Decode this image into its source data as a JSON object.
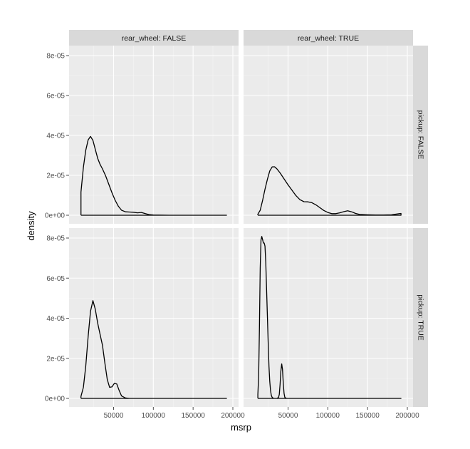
{
  "chart_data": {
    "type": "line",
    "subtype": "density-facet-grid",
    "xlabel": "msrp",
    "ylabel": "density",
    "xlim": [
      0,
      200000
    ],
    "ylim": [
      0,
      8e-05
    ],
    "x_ticks": [
      50000,
      100000,
      150000,
      200000
    ],
    "x_tick_labels": [
      "50000",
      "100000",
      "150000",
      "200000"
    ],
    "y_ticks": [
      0,
      2e-05,
      4e-05,
      6e-05,
      8e-05
    ],
    "y_tick_labels": [
      "0e+00",
      "2e-05",
      "4e-05",
      "6e-05",
      "8e-05"
    ],
    "grid": true,
    "col_strips": [
      "rear_wheel: FALSE",
      "rear_wheel: TRUE"
    ],
    "row_strips": [
      "pickup: FALSE",
      "pickup: TRUE"
    ],
    "panels": [
      {
        "col": 0,
        "row": 0,
        "x": [
          9000,
          12000,
          15000,
          18000,
          21000,
          24000,
          27000,
          30000,
          33000,
          36000,
          40000,
          44000,
          48000,
          52000,
          56000,
          60000,
          65000,
          70000,
          75000,
          80000,
          85000,
          90000,
          95000,
          100000,
          120000,
          140000,
          160000,
          180000,
          192000
        ],
        "y": [
          1.16e-05,
          2.4e-05,
          3.25e-05,
          3.78e-05,
          3.95e-05,
          3.75e-05,
          3.3e-05,
          2.85e-05,
          2.55e-05,
          2.32e-05,
          1.98e-05,
          1.55e-05,
          1.12e-05,
          7.5e-06,
          4.5e-06,
          2.5e-06,
          1.7e-06,
          1.6e-06,
          1.5e-06,
          1.2e-06,
          1.4e-06,
          8e-07,
          3e-07,
          1e-07,
          0,
          0,
          0,
          0,
          0
        ]
      },
      {
        "col": 1,
        "row": 0,
        "x": [
          12000,
          15000,
          18000,
          21000,
          24000,
          27000,
          30000,
          33000,
          36000,
          40000,
          45000,
          50000,
          55000,
          60000,
          65000,
          70000,
          75000,
          80000,
          85000,
          90000,
          95000,
          100000,
          105000,
          110000,
          115000,
          120000,
          125000,
          130000,
          135000,
          140000,
          150000,
          160000,
          170000,
          180000,
          190000,
          192000
        ],
        "y": [
          5e-07,
          2.5e-06,
          7.5e-06,
          1.3e-05,
          1.8e-05,
          2.22e-05,
          2.42e-05,
          2.43e-05,
          2.32e-05,
          2.12e-05,
          1.82e-05,
          1.52e-05,
          1.25e-05,
          9.8e-06,
          7.8e-06,
          6.8e-06,
          6.7e-06,
          6.3e-06,
          5.2e-06,
          3.8e-06,
          2.4e-06,
          1.4e-06,
          8e-07,
          8e-07,
          1.2e-06,
          1.8e-06,
          2.2e-06,
          1.7e-06,
          9e-07,
          4e-07,
          2e-07,
          1e-07,
          1e-07,
          2e-07,
          8e-07,
          9e-07
        ]
      },
      {
        "col": 0,
        "row": 1,
        "x": [
          9000,
          12000,
          15000,
          18000,
          21000,
          24000,
          27000,
          30000,
          33000,
          36000,
          39000,
          42000,
          45000,
          48000,
          51000,
          54000,
          57000,
          60000,
          65000,
          70000,
          80000,
          100000,
          130000,
          160000,
          192000
        ],
        "y": [
          1e-06,
          5.5e-06,
          1.6e-05,
          3.1e-05,
          4.35e-05,
          4.88e-05,
          4.45e-05,
          3.75e-05,
          3.2e-05,
          2.65e-05,
          1.78e-05,
          9.5e-06,
          5.5e-06,
          5.8e-06,
          7.5e-06,
          7.2e-06,
          4e-06,
          1.2e-06,
          2e-07,
          0,
          0,
          0,
          0,
          0,
          0
        ]
      },
      {
        "col": 1,
        "row": 1,
        "x": [
          12000,
          13000,
          14000,
          15000,
          16000,
          17000,
          18000,
          19000,
          20000,
          21000,
          22000,
          23000,
          24000,
          25000,
          26000,
          27000,
          28000,
          29000,
          30000,
          32000,
          34000,
          36000,
          38000,
          39000,
          40000,
          41000,
          42000,
          43000,
          44000,
          45000,
          46000,
          48000,
          50000,
          60000,
          100000,
          150000,
          192000
        ],
        "y": [
          2e-06,
          1.1e-05,
          3.5e-05,
          6.5e-05,
          7.9e-05,
          8.08e-05,
          7.92e-05,
          7.75e-05,
          7.75e-05,
          7.6e-05,
          6.8e-05,
          5.5e-05,
          4.1e-05,
          2.8e-05,
          1.6e-05,
          8.5e-06,
          4e-06,
          1.5e-06,
          5e-07,
          0,
          0,
          0,
          5e-07,
          2e-06,
          7e-06,
          1.35e-05,
          1.72e-05,
          1.45e-05,
          7.5e-06,
          2.5e-06,
          5e-07,
          0,
          0,
          0,
          0,
          0,
          0
        ]
      }
    ]
  }
}
